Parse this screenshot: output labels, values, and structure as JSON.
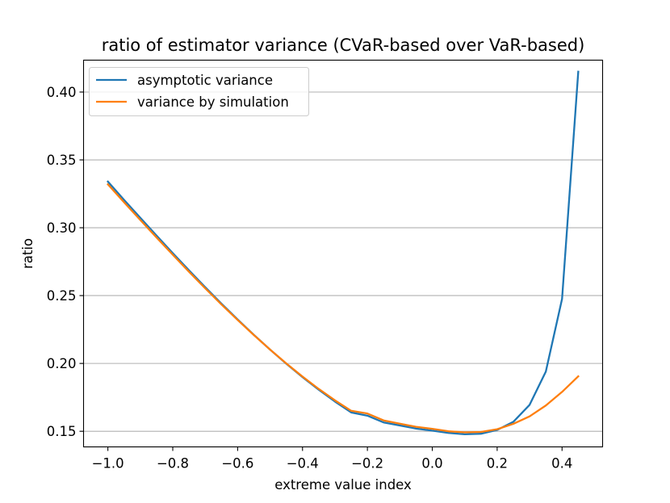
{
  "chart_data": {
    "type": "line",
    "title": "ratio of estimator variance (CVaR-based over VaR-based)",
    "xlabel": "extreme value index",
    "ylabel": "ratio",
    "xlim": [
      -1.075,
      0.525
    ],
    "ylim": [
      0.1385,
      0.4235
    ],
    "x_ticks": [
      -1.0,
      -0.8,
      -0.6,
      -0.4,
      -0.2,
      0.0,
      0.2,
      0.4
    ],
    "x_tick_labels": [
      "−1.0",
      "−0.8",
      "−0.6",
      "−0.4",
      "−0.2",
      "0.0",
      "0.2",
      "0.4"
    ],
    "y_ticks": [
      0.15,
      0.2,
      0.25,
      0.3,
      0.35,
      0.4
    ],
    "y_tick_labels": [
      "0.15",
      "0.20",
      "0.25",
      "0.30",
      "0.35",
      "0.40"
    ],
    "grid": "y",
    "legend_position": "top-left",
    "series": [
      {
        "name": "asymptotic variance",
        "color": "#1f77b4",
        "x": [
          -1.0,
          -0.95,
          -0.9,
          -0.85,
          -0.8,
          -0.75,
          -0.7,
          -0.65,
          -0.6,
          -0.55,
          -0.5,
          -0.45,
          -0.4,
          -0.35,
          -0.3,
          -0.25,
          -0.2,
          -0.15,
          -0.1,
          -0.05,
          0.0,
          0.05,
          0.1,
          0.15,
          0.2,
          0.25,
          0.3,
          0.35,
          0.4,
          0.45
        ],
        "values": [
          0.334,
          0.3205,
          0.3073,
          0.2942,
          0.2813,
          0.2686,
          0.2562,
          0.2441,
          0.2324,
          0.2211,
          0.2102,
          0.1998,
          0.1899,
          0.1806,
          0.1719,
          0.1639,
          0.1615,
          0.1565,
          0.1543,
          0.152,
          0.1505,
          0.1488,
          0.1478,
          0.1482,
          0.151,
          0.157,
          0.1695,
          0.194,
          0.2475,
          0.415
        ]
      },
      {
        "name": "variance by simulation",
        "color": "#ff7f0e",
        "x": [
          -1.0,
          -0.95,
          -0.9,
          -0.85,
          -0.8,
          -0.75,
          -0.7,
          -0.65,
          -0.6,
          -0.55,
          -0.5,
          -0.45,
          -0.4,
          -0.35,
          -0.3,
          -0.25,
          -0.2,
          -0.15,
          -0.1,
          -0.05,
          0.0,
          0.05,
          0.1,
          0.15,
          0.2,
          0.25,
          0.3,
          0.35,
          0.4,
          0.45
        ],
        "values": [
          0.332,
          0.3187,
          0.3057,
          0.2928,
          0.2801,
          0.2676,
          0.2554,
          0.2435,
          0.232,
          0.2209,
          0.2102,
          0.2,
          0.1903,
          0.1812,
          0.1728,
          0.1651,
          0.1631,
          0.158,
          0.1556,
          0.1533,
          0.1518,
          0.15,
          0.1492,
          0.1495,
          0.1515,
          0.1555,
          0.161,
          0.169,
          0.179,
          0.1905
        ]
      }
    ]
  }
}
